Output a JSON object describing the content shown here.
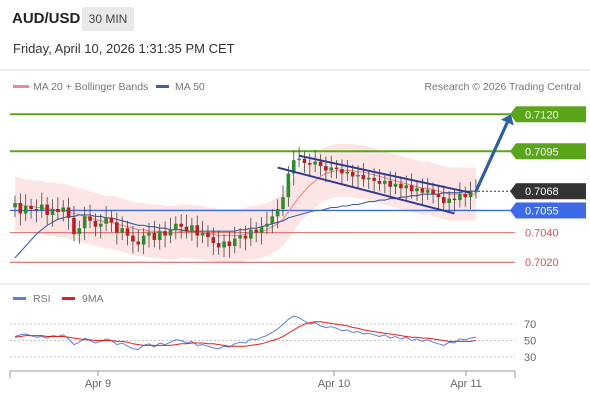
{
  "header": {
    "symbol": "AUD/USD",
    "timeframe": "30 MIN",
    "datetime": "Friday, April 10, 2026 1:31:35 PM CET"
  },
  "legend": {
    "ma20": "MA 20 + Bollinger Bands",
    "ma50": "MA 50",
    "credit": "Research © 2026 Trading Central",
    "rsi": "RSI",
    "ma9": "9MA"
  },
  "colors": {
    "ma20": "#f08a8a",
    "bands": "#fde0e0",
    "ma50": "#3f5f9e",
    "bull": "#2e8b2e",
    "bear": "#b22222",
    "green_level": "#5aa51a",
    "blue_level": "#3d6be8",
    "red_level": "#d9534f",
    "current": "#333333",
    "channel": "#2e3b8e",
    "arrow": "#2f5f9f",
    "rsi": "#5b7fd6",
    "ma9": "#dd2222"
  },
  "chart_data": [
    {
      "type": "line",
      "title": "AUD/USD",
      "ylim": [
        0.7008,
        0.7131
      ],
      "levels": [
        {
          "value": 0.712,
          "label": "0.7120",
          "kind": "resistance"
        },
        {
          "value": 0.7095,
          "label": "0.7095",
          "kind": "resistance"
        },
        {
          "value": 0.7068,
          "label": "0.7068",
          "kind": "current"
        },
        {
          "value": 0.7055,
          "label": "0.7055",
          "kind": "pivot"
        },
        {
          "value": 0.704,
          "label": "0.7040",
          "kind": "support"
        },
        {
          "value": 0.702,
          "label": "0.7020",
          "kind": "support"
        }
      ],
      "x_ticks": [
        "Apr 9",
        "Apr 10",
        "Apr 11"
      ],
      "close": [
        0.706,
        0.7053,
        0.7058,
        0.7056,
        0.7055,
        0.7059,
        0.7052,
        0.7056,
        0.7054,
        0.7057,
        0.705,
        0.7039,
        0.7043,
        0.7051,
        0.7048,
        0.7044,
        0.7046,
        0.705,
        0.7047,
        0.704,
        0.7043,
        0.7038,
        0.7034,
        0.7032,
        0.7038,
        0.704,
        0.7035,
        0.7041,
        0.7038,
        0.7042,
        0.7046,
        0.7044,
        0.7041,
        0.7045,
        0.7038,
        0.704,
        0.7037,
        0.7033,
        0.703,
        0.7034,
        0.7031,
        0.7036,
        0.7038,
        0.7036,
        0.7042,
        0.704,
        0.7044,
        0.7046,
        0.7051,
        0.7056,
        0.7064,
        0.708,
        0.7089,
        0.709,
        0.7087,
        0.7086,
        0.7088,
        0.7085,
        0.7082,
        0.7084,
        0.7083,
        0.708,
        0.7081,
        0.7078,
        0.7079,
        0.7076,
        0.7077,
        0.7075,
        0.7073,
        0.7075,
        0.7071,
        0.7073,
        0.707,
        0.7072,
        0.7068,
        0.707,
        0.7067,
        0.7069,
        0.7066,
        0.7064,
        0.706,
        0.7063,
        0.7062,
        0.7066,
        0.7064,
        0.7068,
        0.7068
      ],
      "series": [
        {
          "name": "MA 20 + Bollinger Bands",
          "values": [
            0.706,
            0.7059,
            0.7058,
            0.7058,
            0.7057,
            0.7057,
            0.7056,
            0.7056,
            0.7055,
            0.7055,
            0.7054,
            0.7053,
            0.7052,
            0.7051,
            0.705,
            0.7049,
            0.7048,
            0.7047,
            0.7047,
            0.7046,
            0.7045,
            0.7044,
            0.7043,
            0.7042,
            0.7042,
            0.7041,
            0.7041,
            0.7041,
            0.704,
            0.704,
            0.704,
            0.7041,
            0.7041,
            0.7041,
            0.704,
            0.704,
            0.7039,
            0.7039,
            0.7038,
            0.7038,
            0.7038,
            0.7038,
            0.7038,
            0.7039,
            0.704,
            0.704,
            0.7041,
            0.7042,
            0.7044,
            0.7046,
            0.7049,
            0.7054,
            0.7059,
            0.7064,
            0.7068,
            0.7072,
            0.7075,
            0.7078,
            0.708,
            0.7081,
            0.7082,
            0.7082,
            0.7082,
            0.7082,
            0.7081,
            0.7081,
            0.708,
            0.7079,
            0.7078,
            0.7077,
            0.7076,
            0.7075,
            0.7074,
            0.7073,
            0.7072,
            0.7071,
            0.707,
            0.707,
            0.7069,
            0.7068,
            0.7067,
            0.7066,
            0.7066,
            0.7066,
            0.7066,
            0.7066,
            0.7066
          ]
        },
        {
          "name": "MA 50",
          "values": [
            0.7023,
            0.7027,
            0.7031,
            0.7035,
            0.7039,
            0.7042,
            0.7045,
            0.7047,
            0.7049,
            0.705,
            0.7051,
            0.7051,
            0.7052,
            0.7052,
            0.7052,
            0.7051,
            0.7051,
            0.705,
            0.705,
            0.7049,
            0.7048,
            0.7047,
            0.7046,
            0.7045,
            0.7045,
            0.7044,
            0.7044,
            0.7043,
            0.7043,
            0.7042,
            0.7042,
            0.7042,
            0.7041,
            0.7041,
            0.7041,
            0.7041,
            0.7041,
            0.7041,
            0.7041,
            0.7041,
            0.7041,
            0.7041,
            0.7042,
            0.7042,
            0.7043,
            0.7043,
            0.7044,
            0.7045,
            0.7046,
            0.7047,
            0.7048,
            0.705,
            0.7051,
            0.7052,
            0.7053,
            0.7054,
            0.7055,
            0.7055,
            0.7056,
            0.7057,
            0.7057,
            0.7058,
            0.7058,
            0.7059,
            0.7059,
            0.706,
            0.7061,
            0.7061,
            0.7062,
            0.7062,
            0.7063,
            0.7063,
            0.7064,
            0.7064,
            0.7065,
            0.7065,
            0.7066,
            0.7066,
            0.7066,
            0.7066,
            0.7067,
            0.7067,
            0.7067,
            0.7067,
            0.7068,
            0.7068,
            0.7068
          ]
        }
      ],
      "band_width": 0.0018,
      "channel": {
        "upper": [
          [
            53,
            0.7092
          ],
          [
            85,
            0.7067
          ]
        ],
        "lower": [
          [
            49,
            0.7084
          ],
          [
            82,
            0.7053
          ]
        ]
      },
      "projection": {
        "from_index": 86,
        "from_value": 0.7068,
        "to_value": 0.712
      }
    },
    {
      "type": "line",
      "title": "RSI",
      "ylim": [
        20,
        85
      ],
      "y_ticks": [
        70,
        50,
        30
      ],
      "series": [
        {
          "name": "RSI",
          "values": [
            55,
            57,
            58,
            56,
            54,
            55,
            53,
            56,
            55,
            57,
            52,
            45,
            48,
            53,
            50,
            47,
            49,
            52,
            50,
            45,
            47,
            43,
            40,
            39,
            44,
            46,
            42,
            47,
            45,
            48,
            51,
            50,
            47,
            49,
            44,
            45,
            43,
            41,
            40,
            43,
            42,
            46,
            48,
            47,
            52,
            51,
            54,
            56,
            60,
            64,
            70,
            76,
            80,
            78,
            74,
            70,
            72,
            68,
            66,
            67,
            65,
            62,
            63,
            60,
            61,
            58,
            59,
            57,
            55,
            57,
            53,
            55,
            52,
            54,
            50,
            52,
            49,
            51,
            48,
            46,
            44,
            48,
            47,
            52,
            51,
            53,
            54
          ]
        },
        {
          "name": "9MA",
          "values": [
            54,
            55,
            56,
            56,
            56,
            56,
            55,
            55,
            55,
            55,
            54,
            53,
            52,
            51,
            51,
            50,
            50,
            50,
            50,
            49,
            49,
            48,
            46,
            45,
            44,
            44,
            44,
            44,
            44,
            44,
            45,
            46,
            46,
            47,
            47,
            47,
            46,
            46,
            45,
            44,
            43,
            43,
            43,
            43,
            44,
            45,
            46,
            48,
            50,
            52,
            55,
            59,
            63,
            67,
            70,
            72,
            73,
            73,
            72,
            71,
            70,
            69,
            68,
            66,
            65,
            63,
            62,
            61,
            60,
            59,
            58,
            57,
            56,
            55,
            54,
            54,
            53,
            53,
            52,
            51,
            50,
            49,
            49,
            49,
            49,
            49,
            50
          ]
        }
      ]
    }
  ]
}
